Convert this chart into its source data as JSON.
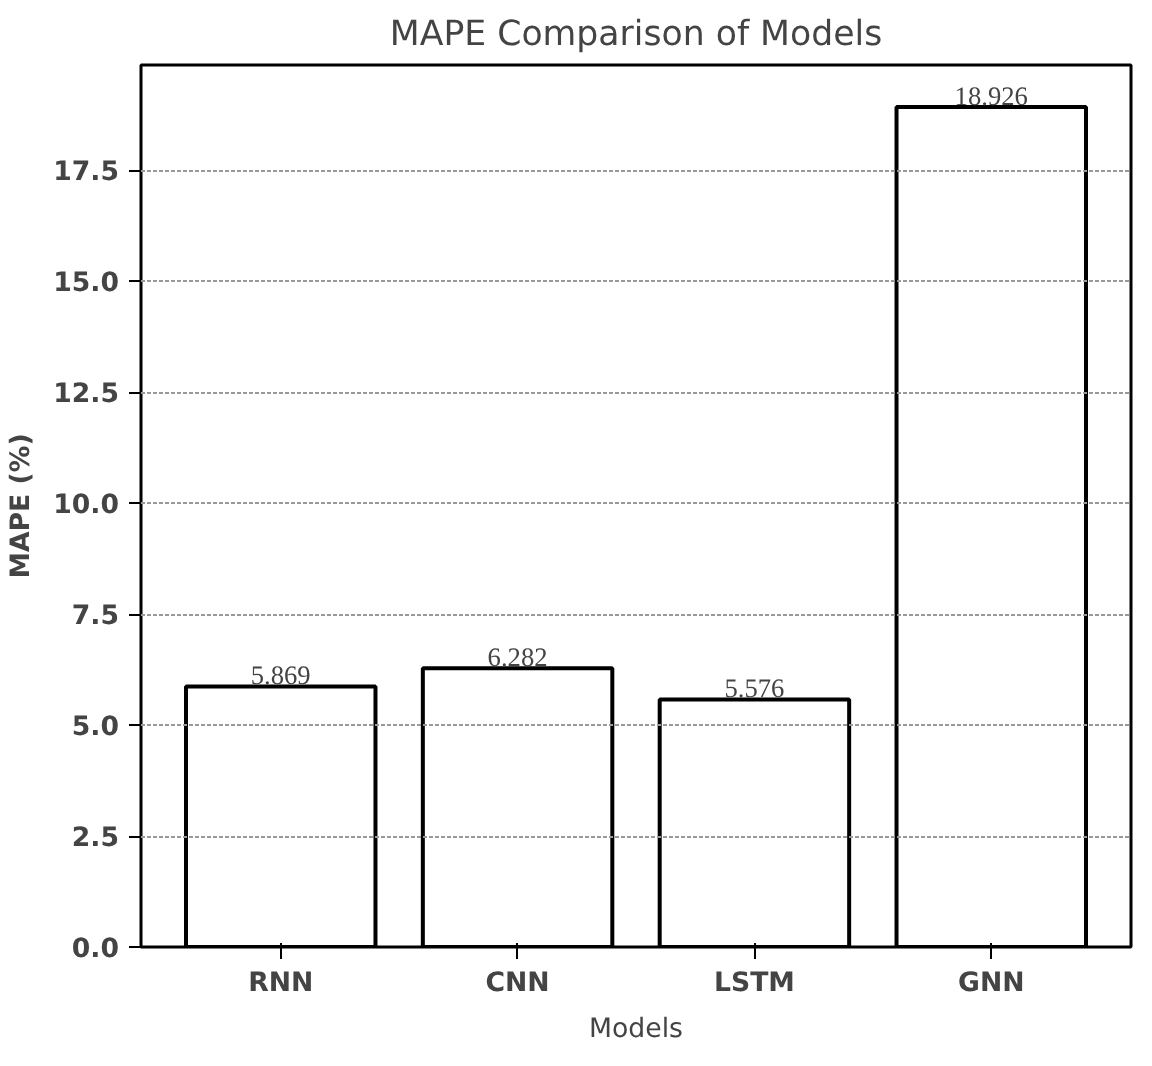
{
  "chart_data": {
    "type": "bar",
    "title": "MAPE Comparison of Models",
    "xlabel": "Models",
    "ylabel": "MAPE (%)",
    "categories": [
      "RNN",
      "CNN",
      "LSTM",
      "GNN"
    ],
    "values": [
      5.869,
      6.282,
      5.576,
      18.926
    ],
    "color": "#ffffff",
    "ylim": [
      0,
      19.87
    ],
    "yticks": [
      {
        "value": 0,
        "label": "0.0"
      },
      {
        "value": 2.5,
        "label": "2.5"
      },
      {
        "value": 5,
        "label": "5.0"
      },
      {
        "value": 7.5,
        "label": "7.5"
      },
      {
        "value": 10,
        "label": "10.0"
      },
      {
        "value": 12.5,
        "label": "12.5"
      },
      {
        "value": 15,
        "label": "15.0"
      },
      {
        "value": 17.5,
        "label": "17.5"
      }
    ],
    "grid": "y",
    "data_labels": true
  }
}
